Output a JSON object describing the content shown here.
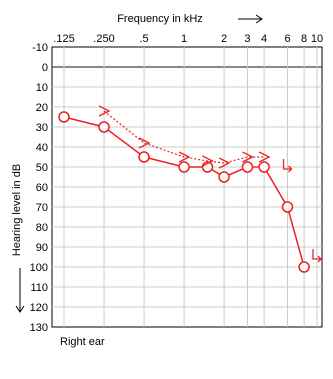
{
  "chart_data": {
    "type": "line",
    "title": "Frequency in kHz",
    "xlabel": "Frequency in kHz",
    "ylabel": "Hearing level in dB",
    "footer": "Right ear",
    "x_scale": "log",
    "y_inverted": true,
    "xlim": [
      0.125,
      10
    ],
    "ylim": [
      -10,
      130
    ],
    "x_ticks": [
      0.125,
      0.25,
      0.5,
      1,
      2,
      3,
      4,
      6,
      8,
      10
    ],
    "x_tick_labels": [
      ".125",
      ".250",
      ".5",
      "1",
      "2",
      "3",
      "4",
      "6",
      "8",
      "10"
    ],
    "y_ticks": [
      -10,
      0,
      10,
      20,
      30,
      40,
      50,
      60,
      70,
      80,
      90,
      100,
      110,
      120,
      130
    ],
    "y_tick_labels": [
      "-10",
      "0",
      "10",
      "20",
      "30",
      "40",
      "50",
      "60",
      "70",
      "80",
      "90",
      "100",
      "110",
      "120",
      "130"
    ],
    "grid": true,
    "series": [
      {
        "marker": "circle",
        "line_style": "solid",
        "points": [
          [
            0.125,
            25
          ],
          [
            0.25,
            30
          ],
          [
            0.5,
            45
          ],
          [
            1,
            50
          ],
          [
            1.5,
            50
          ],
          [
            2,
            55
          ],
          [
            3,
            50
          ],
          [
            4,
            50
          ],
          [
            6,
            70
          ],
          [
            8,
            100
          ]
        ]
      },
      {
        "marker": ">",
        "line_style": "dotted",
        "points": [
          [
            0.25,
            22
          ],
          [
            0.5,
            38
          ],
          [
            1,
            45
          ],
          [
            1.5,
            47
          ],
          [
            2,
            48
          ],
          [
            3,
            45
          ],
          [
            4,
            45
          ]
        ]
      },
      {
        "marker": "arrow-down-right",
        "line_style": "none",
        "points": [
          [
            6,
            50
          ],
          [
            10,
            95
          ]
        ]
      }
    ],
    "color": "#ee2222",
    "zero_line_color": "#606060",
    "grid_color": "#cccccc"
  }
}
